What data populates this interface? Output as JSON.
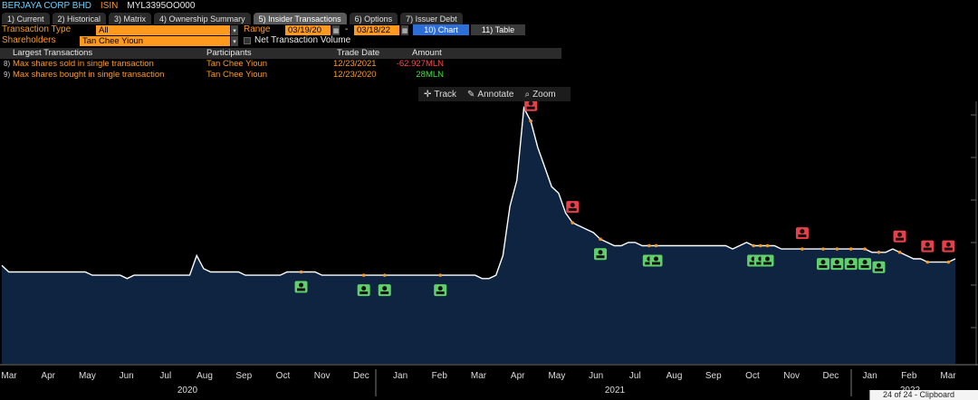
{
  "security": {
    "name": "BERJAYA CORP BHD",
    "isin_label": "ISIN",
    "isin": "MYL3395OO000"
  },
  "tabs": [
    {
      "label": "1) Current"
    },
    {
      "label": "2) Historical"
    },
    {
      "label": "3) Matrix"
    },
    {
      "label": "4) Ownership Summary"
    },
    {
      "label": "5) Insider Transactions"
    },
    {
      "label": "6) Options"
    },
    {
      "label": "7) Issuer Debt"
    }
  ],
  "controls": {
    "transaction_type_label": "Transaction Type",
    "transaction_type_value": "All",
    "shareholders_label": "Shareholders",
    "shareholders_value": "Tan Chee Yioun",
    "range_label": "Range",
    "range_start": "03/19/20",
    "range_sep": "-",
    "range_end": "03/18/22",
    "chart_button": "10) Chart",
    "table_button": "11) Table",
    "net_volume_label": "Net Transaction Volume"
  },
  "largest": {
    "headers": [
      "Largest Transactions",
      "Participants",
      "Trade Date",
      "Amount"
    ],
    "rows": [
      {
        "idx": "8)",
        "label": "Max shares sold in single transaction",
        "participant": "Tan Chee Yioun",
        "date": "12/23/2021",
        "amount": "-62.927MLN",
        "color": "#ff4a4a"
      },
      {
        "idx": "9)",
        "label": "Max shares bought in single transaction",
        "participant": "Tan Chee Yioun",
        "date": "12/23/2020",
        "amount": "28MLN",
        "color": "#45e045"
      }
    ]
  },
  "chart_tools": {
    "track": "Track",
    "annotate": "Annotate",
    "zoom": "Zoom"
  },
  "chart_data": {
    "type": "area",
    "title": "",
    "xlabel": "",
    "ylabel": "",
    "x_tick_labels": [
      "Mar",
      "Apr",
      "May",
      "Jun",
      "Jul",
      "Aug",
      "Sep",
      "Oct",
      "Nov",
      "Dec",
      "Jan",
      "Feb",
      "Mar",
      "Apr",
      "May",
      "Jun",
      "Jul",
      "Aug",
      "Sep",
      "Oct",
      "Nov",
      "Dec",
      "Jan",
      "Feb",
      "Mar"
    ],
    "year_labels": [
      "2020",
      "2021",
      "2022"
    ],
    "series": [
      {
        "values": [
          0.3,
          0.28,
          0.28,
          0.28,
          0.28,
          0.28,
          0.28,
          0.28,
          0.28,
          0.28,
          0.28,
          0.28,
          0.28,
          0.27,
          0.27,
          0.27,
          0.27,
          0.27,
          0.26,
          0.27,
          0.27,
          0.27,
          0.27,
          0.27,
          0.27,
          0.27,
          0.27,
          0.27,
          0.33,
          0.29,
          0.28,
          0.28,
          0.28,
          0.28,
          0.28,
          0.27,
          0.27,
          0.27,
          0.27,
          0.27,
          0.27,
          0.28,
          0.28,
          0.28,
          0.28,
          0.28,
          0.27,
          0.27,
          0.27,
          0.27,
          0.27,
          0.27,
          0.27,
          0.27,
          0.27,
          0.27,
          0.27,
          0.27,
          0.27,
          0.27,
          0.27,
          0.27,
          0.27,
          0.27,
          0.27,
          0.27,
          0.27,
          0.27,
          0.27,
          0.26,
          0.26,
          0.27,
          0.33,
          0.48,
          0.56,
          0.78,
          0.74,
          0.66,
          0.6,
          0.54,
          0.52,
          0.46,
          0.43,
          0.42,
          0.41,
          0.4,
          0.38,
          0.37,
          0.36,
          0.36,
          0.37,
          0.37,
          0.36,
          0.36,
          0.36,
          0.36,
          0.36,
          0.36,
          0.36,
          0.36,
          0.36,
          0.36,
          0.36,
          0.36,
          0.36,
          0.35,
          0.36,
          0.37,
          0.36,
          0.36,
          0.36,
          0.36,
          0.35,
          0.35,
          0.35,
          0.35,
          0.35,
          0.35,
          0.35,
          0.35,
          0.35,
          0.35,
          0.35,
          0.35,
          0.35,
          0.34,
          0.34,
          0.34,
          0.35,
          0.34,
          0.33,
          0.32,
          0.32,
          0.31,
          0.31,
          0.31,
          0.31,
          0.32
        ]
      }
    ],
    "markers": [
      {
        "type": "sell",
        "index": 76
      },
      {
        "type": "sell",
        "index": 82
      },
      {
        "type": "buy",
        "index": 86
      },
      {
        "type": "buy",
        "index": 93
      },
      {
        "type": "buy",
        "index": 94
      },
      {
        "type": "buy",
        "index": 108
      },
      {
        "type": "buy",
        "index": 109
      },
      {
        "type": "buy",
        "index": 110
      },
      {
        "type": "sell",
        "index": 115
      },
      {
        "type": "buy",
        "index": 118
      },
      {
        "type": "buy",
        "index": 120
      },
      {
        "type": "buy",
        "index": 122
      },
      {
        "type": "buy",
        "index": 124
      },
      {
        "type": "buy",
        "index": 126
      },
      {
        "type": "sell",
        "index": 129
      },
      {
        "type": "sell",
        "index": 133
      },
      {
        "type": "sell",
        "index": 136
      },
      {
        "type": "buy",
        "index": 143
      },
      {
        "type": "buy",
        "index": 43
      },
      {
        "type": "buy",
        "index": 52
      },
      {
        "type": "buy",
        "index": 55
      },
      {
        "type": "buy",
        "index": 63
      }
    ],
    "grid": false,
    "legend": "none"
  },
  "clipboard": {
    "label": "24 of 24 - Clipboard"
  }
}
